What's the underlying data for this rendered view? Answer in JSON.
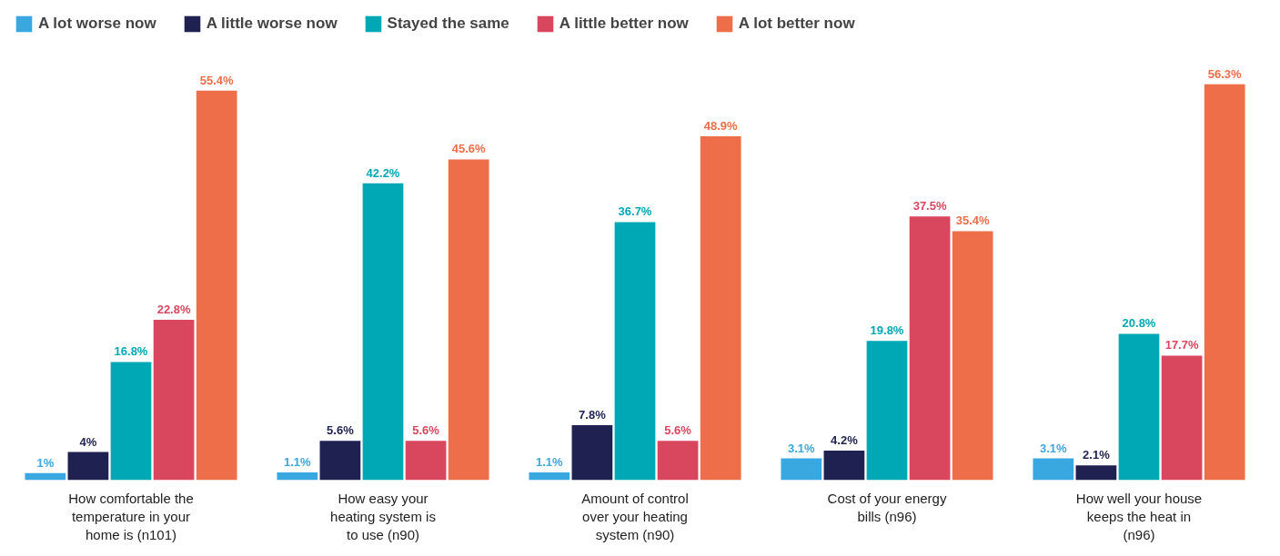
{
  "chart_data": {
    "type": "bar",
    "categories": [
      "How comfortable the temperature in your home is (n101)",
      "How easy your heating system is to use (n90)",
      "Amount of control over your heating system (n90)",
      "Cost of your energy bills (n96)",
      "How well your house keeps the heat in (n96)"
    ],
    "series": [
      {
        "name": "A lot worse now",
        "color": "#3aa8e0",
        "values": [
          1,
          1.1,
          1.1,
          3.1,
          3.1
        ],
        "value_labels": [
          "1%",
          "1.1%",
          "1.1%",
          "3.1%",
          "3.1%"
        ]
      },
      {
        "name": "A little worse now",
        "color": "#1f2150",
        "values": [
          4,
          5.6,
          7.8,
          4.2,
          2.1
        ],
        "value_labels": [
          "4%",
          "5.6%",
          "7.8%",
          "4.2%",
          "2.1%"
        ]
      },
      {
        "name": "Stayed the same",
        "color": "#00a8b5",
        "values": [
          16.8,
          42.2,
          36.7,
          19.8,
          20.8
        ],
        "value_labels": [
          "16.8%",
          "42.2%",
          "36.7%",
          "19.8%",
          "20.8%"
        ]
      },
      {
        "name": "A little better now",
        "color": "#d9475e",
        "values": [
          22.8,
          5.6,
          5.6,
          37.5,
          17.7
        ],
        "value_labels": [
          "22.8%",
          "5.6%",
          "5.6%",
          "37.5%",
          "17.7%"
        ]
      },
      {
        "name": "A lot better now",
        "color": "#ee6e4a",
        "values": [
          55.4,
          45.6,
          48.9,
          35.4,
          56.3
        ],
        "value_labels": [
          "55.4%",
          "45.6%",
          "48.9%",
          "35.4%",
          "56.3%"
        ]
      }
    ],
    "legend": "top left",
    "grid": false
  }
}
